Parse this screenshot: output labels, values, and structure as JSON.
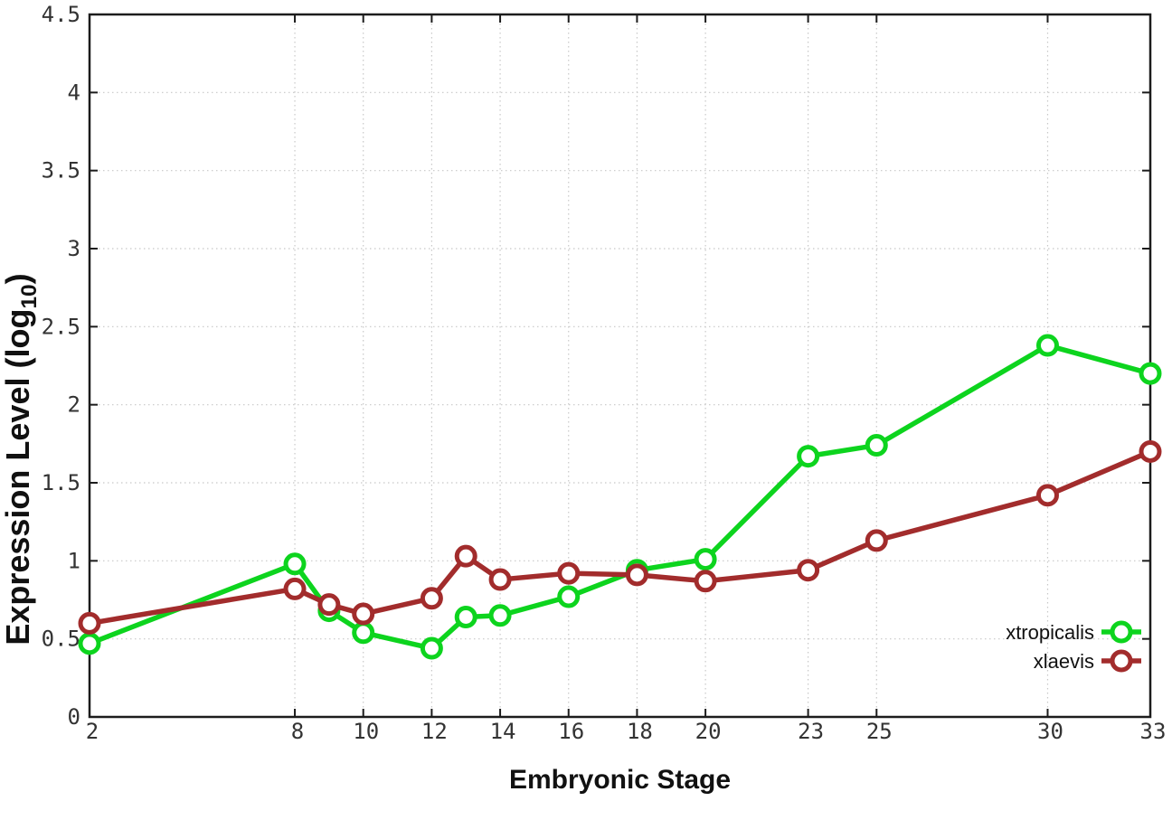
{
  "figure": {
    "background": "#ffffff",
    "border_color": "#1c1c1c",
    "grid_color": "#c8c8c8",
    "tick_label_color": "#333333",
    "title_color": "#111111",
    "legend_text_color": "#111111"
  },
  "titles": {
    "x_axis": "Embryonic Stage",
    "y_axis_prefix": "Expression Level (log",
    "y_axis_sub": "10",
    "y_axis_suffix": ")"
  },
  "chart_data": {
    "type": "line",
    "title": "",
    "xlabel": "Embryonic Stage",
    "ylabel": "Expression Level (log10)",
    "xlim": [
      2,
      33
    ],
    "ylim": [
      0,
      4.5
    ],
    "x_ticks": [
      2,
      8,
      10,
      12,
      14,
      16,
      18,
      20,
      23,
      25,
      30,
      33
    ],
    "y_ticks": [
      0,
      0.5,
      1,
      1.5,
      2,
      2.5,
      3,
      3.5,
      4,
      4.5
    ],
    "grid": true,
    "legend_position": "inside-bottom-right",
    "marker": "open-circle",
    "x": [
      2,
      8,
      9,
      10,
      12,
      13,
      14,
      16,
      18,
      20,
      23,
      25,
      30,
      33
    ],
    "series": [
      {
        "name": "xtropicalis",
        "color": "#0dd41e",
        "values": [
          0.47,
          0.98,
          0.68,
          0.54,
          0.44,
          0.64,
          0.65,
          0.77,
          0.94,
          1.01,
          1.67,
          1.74,
          2.38,
          2.2
        ]
      },
      {
        "name": "xlaevis",
        "color": "#a22c2c",
        "values": [
          0.6,
          0.82,
          0.72,
          0.66,
          0.76,
          1.03,
          0.88,
          0.92,
          0.91,
          0.87,
          0.94,
          1.13,
          1.42,
          1.7
        ]
      }
    ]
  }
}
